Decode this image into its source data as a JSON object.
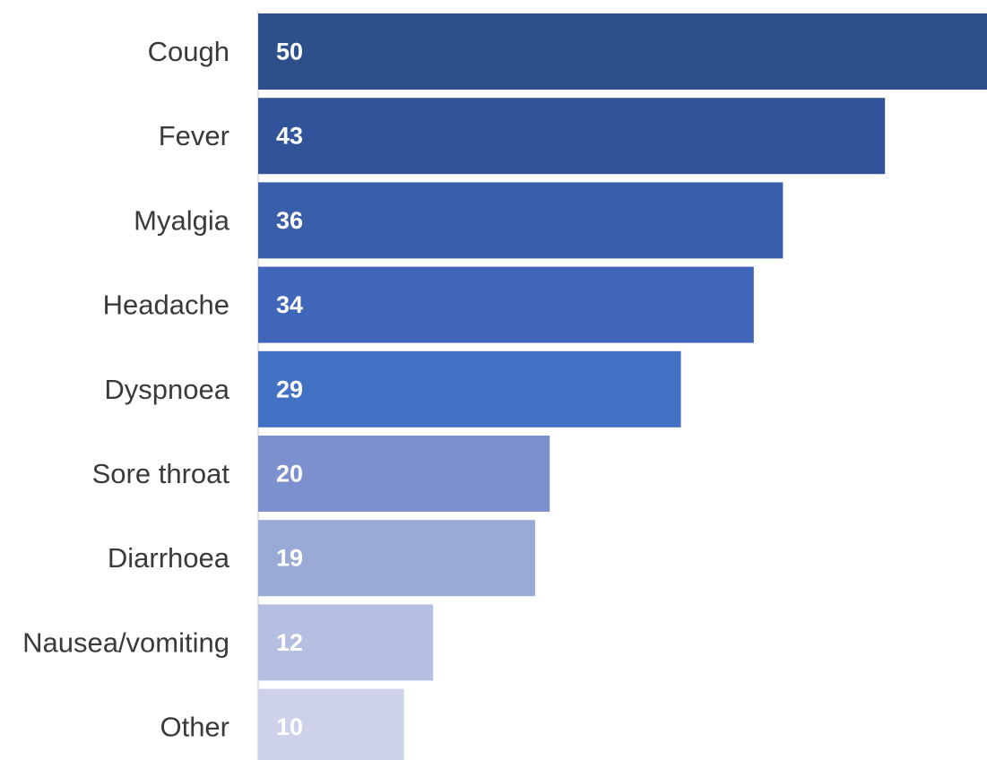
{
  "chart_data": {
    "type": "bar",
    "orientation": "horizontal",
    "categories": [
      "Cough",
      "Fever",
      "Myalgia",
      "Headache",
      "Dyspnoea",
      "Sore throat",
      "Diarrhoea",
      "Nausea/vomiting",
      "Other"
    ],
    "values": [
      50,
      43,
      36,
      34,
      29,
      20,
      19,
      12,
      10
    ],
    "data_labels": [
      "50",
      "43",
      "36",
      "34",
      "29",
      "20",
      "19",
      "12",
      "10"
    ],
    "colors": [
      "#2d4f8a",
      "#30539a",
      "#3a5faa",
      "#3f66b8",
      "#4271c4",
      "#7b90cc",
      "#9aaad7",
      "#b5bfe1",
      "#cdd2ea"
    ],
    "title": "",
    "xlabel": "",
    "ylabel": "",
    "xlim": [
      0,
      50
    ],
    "grid": false,
    "legend": "none"
  }
}
